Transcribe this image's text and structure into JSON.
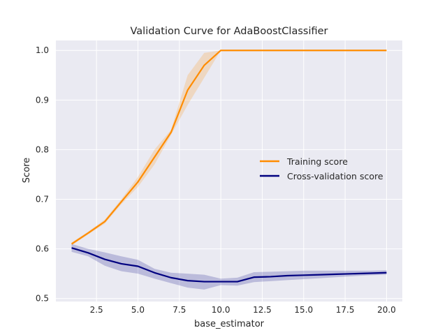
{
  "chart_data": {
    "type": "line",
    "title": "Validation Curve for AdaBoostClassifier",
    "xlabel": "base_estimator",
    "ylabel": "Score",
    "xlim": [
      0.05,
      20.95
    ],
    "ylim": [
      0.494,
      1.02
    ],
    "xticks": [
      2.5,
      5.0,
      7.5,
      10.0,
      12.5,
      15.0,
      17.5,
      20.0
    ],
    "xtick_labels": [
      "2.5",
      "5.0",
      "7.5",
      "10.0",
      "12.5",
      "15.0",
      "17.5",
      "20.0"
    ],
    "yticks": [
      0.5,
      0.6,
      0.7,
      0.8,
      0.9,
      1.0
    ],
    "ytick_labels": [
      "0.5",
      "0.6",
      "0.7",
      "0.8",
      "0.9",
      "1.0"
    ],
    "grid": true,
    "legend_position": "center-right",
    "x": [
      1,
      2,
      3,
      4,
      5,
      6,
      7,
      8,
      9,
      10,
      11,
      12,
      13,
      14,
      15,
      16,
      17,
      18,
      19,
      20
    ],
    "series": [
      {
        "name": "Training score",
        "color": "#ff8c00",
        "values": [
          0.61,
          0.632,
          0.655,
          0.695,
          0.735,
          0.785,
          0.835,
          0.92,
          0.97,
          1.0,
          1.0,
          1.0,
          1.0,
          1.0,
          1.0,
          1.0,
          1.0,
          1.0,
          1.0,
          1.0
        ],
        "upper": [
          0.613,
          0.635,
          0.659,
          0.7,
          0.745,
          0.8,
          0.84,
          0.95,
          0.995,
          1.0,
          1.0,
          1.0,
          1.0,
          1.0,
          1.0,
          1.0,
          1.0,
          1.0,
          1.0,
          1.0
        ],
        "lower": [
          0.607,
          0.629,
          0.651,
          0.69,
          0.725,
          0.77,
          0.83,
          0.89,
          0.945,
          1.0,
          1.0,
          1.0,
          1.0,
          1.0,
          1.0,
          1.0,
          1.0,
          1.0,
          1.0,
          1.0
        ]
      },
      {
        "name": "Cross-validation score",
        "color": "#000080",
        "values": [
          0.602,
          0.592,
          0.579,
          0.57,
          0.565,
          0.552,
          0.542,
          0.536,
          0.534,
          0.534,
          0.534,
          0.543,
          0.544,
          0.546,
          0.547,
          0.548,
          0.549,
          0.55,
          0.551,
          0.552
        ],
        "upper": [
          0.61,
          0.6,
          0.593,
          0.585,
          0.578,
          0.56,
          0.552,
          0.55,
          0.548,
          0.54,
          0.542,
          0.553,
          0.554,
          0.555,
          0.556,
          0.556,
          0.556,
          0.556,
          0.556,
          0.557
        ],
        "lower": [
          0.594,
          0.585,
          0.566,
          0.555,
          0.55,
          0.54,
          0.531,
          0.522,
          0.518,
          0.527,
          0.526,
          0.533,
          0.535,
          0.537,
          0.539,
          0.541,
          0.543,
          0.545,
          0.547,
          0.548
        ]
      }
    ]
  },
  "colors": {
    "plot_background": "#eaeaf2",
    "grid": "#ffffff",
    "text": "#262626"
  }
}
